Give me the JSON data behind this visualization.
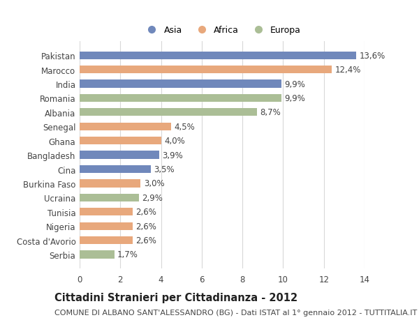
{
  "countries": [
    "Serbia",
    "Costa d'Avorio",
    "Nigeria",
    "Tunisia",
    "Ucraina",
    "Burkina Faso",
    "Cina",
    "Bangladesh",
    "Ghana",
    "Senegal",
    "Albania",
    "Romania",
    "India",
    "Marocco",
    "Pakistan"
  ],
  "values": [
    1.7,
    2.6,
    2.6,
    2.6,
    2.9,
    3.0,
    3.5,
    3.9,
    4.0,
    4.5,
    8.7,
    9.9,
    9.9,
    12.4,
    13.6
  ],
  "labels": [
    "1,7%",
    "2,6%",
    "2,6%",
    "2,6%",
    "2,9%",
    "3,0%",
    "3,5%",
    "3,9%",
    "4,0%",
    "4,5%",
    "8,7%",
    "9,9%",
    "9,9%",
    "12,4%",
    "13,6%"
  ],
  "continents": [
    "Europa",
    "Africa",
    "Africa",
    "Africa",
    "Europa",
    "Africa",
    "Asia",
    "Asia",
    "Africa",
    "Africa",
    "Europa",
    "Europa",
    "Asia",
    "Africa",
    "Asia"
  ],
  "colors": {
    "Asia": "#7088bb",
    "Africa": "#e8a87c",
    "Europa": "#abbe96"
  },
  "xlim": [
    0,
    14
  ],
  "xticks": [
    0,
    2,
    4,
    6,
    8,
    10,
    12,
    14
  ],
  "title": "Cittadini Stranieri per Cittadinanza - 2012",
  "subtitle": "COMUNE DI ALBANO SANT'ALESSANDRO (BG) - Dati ISTAT al 1° gennaio 2012 - TUTTITALIA.IT",
  "background_color": "#ffffff",
  "bar_height": 0.55,
  "grid_color": "#d8d8d8",
  "text_color": "#444444",
  "label_fontsize": 8.5,
  "ytick_fontsize": 8.5,
  "xtick_fontsize": 8.5,
  "title_fontsize": 10.5,
  "subtitle_fontsize": 8.0
}
